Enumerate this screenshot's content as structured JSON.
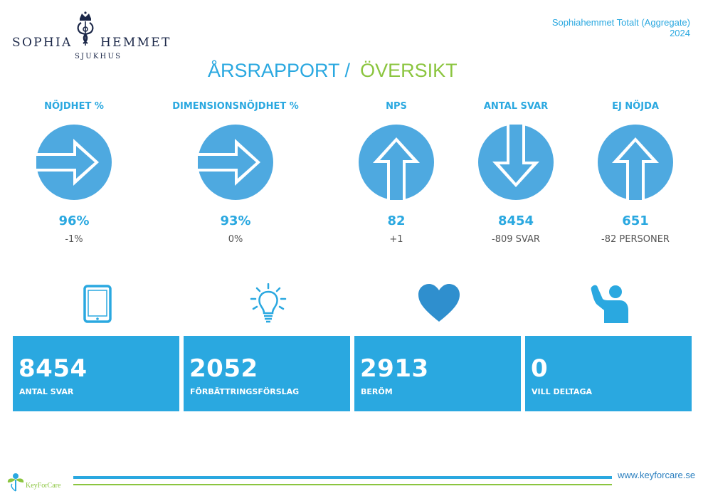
{
  "header": {
    "logo_left": "SOPHIA",
    "logo_right": "HEMMET",
    "logo_sub": "SJUKHUS",
    "org_name": "Sophiahemmet Totalt (Aggregate)",
    "year": "2024"
  },
  "title": {
    "part1": "ÅRSRAPPORT /",
    "part2": "ÖVERSIKT"
  },
  "kpis": [
    {
      "label": "NÖJDHET %",
      "value": "96%",
      "change": "-1%",
      "direction": "right"
    },
    {
      "label": "DIMENSIONSNÖJDHET %",
      "value": "93%",
      "change": "0%",
      "direction": "right"
    },
    {
      "label": "NPS",
      "value": "82",
      "change": "+1",
      "direction": "up"
    },
    {
      "label": "ANTAL SVAR",
      "value": "8454",
      "change": "-809 SVAR",
      "direction": "down"
    },
    {
      "label": "EJ NÖJDA",
      "value": "651",
      "change": "-82 PERSONER",
      "direction": "up"
    }
  ],
  "summary_icons": [
    "tablet-icon",
    "lightbulb-icon",
    "heart-icon",
    "raised-hand-icon"
  ],
  "tiles": [
    {
      "value": "8454",
      "label": "ANTAL SVAR"
    },
    {
      "value": "2052",
      "label": "FÖRBÄTTRINGSFÖRSLAG"
    },
    {
      "value": "2913",
      "label": "BERÖM"
    },
    {
      "value": "0",
      "label": "VILL DELTAGA"
    }
  ],
  "footer": {
    "brand": "KeyForCare",
    "website": "www.keyforcare.se"
  },
  "colors": {
    "primary": "#2aa8e0",
    "accent": "#8bc53f",
    "icon": "#4ea9e0",
    "heart": "#2f8fce"
  }
}
